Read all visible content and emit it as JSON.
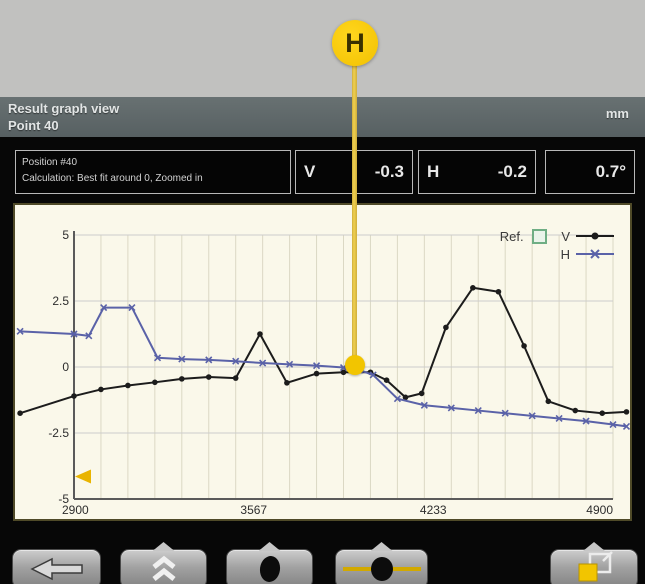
{
  "header": {
    "title_line1": "Result graph view",
    "title_line2": "Point 40",
    "unit": "mm"
  },
  "info_panel": {
    "position_line": "Position #40",
    "calculation_line": "Calculation: Best fit around 0, Zoomed in",
    "readouts": [
      {
        "label": "V",
        "value": "-0.3"
      },
      {
        "label": "H",
        "value": "-0.2"
      },
      {
        "label": "",
        "value": "0.7°"
      }
    ]
  },
  "chart_data": {
    "type": "line",
    "title": "",
    "xlabel": "",
    "ylabel": "",
    "xlim": [
      2700,
      4960
    ],
    "ylim": [
      -5,
      5
    ],
    "x_ticks": [
      "2900",
      "3567",
      "4233",
      "4900"
    ],
    "x_tick_values": [
      2900,
      3567,
      4233,
      4900
    ],
    "y_ticks": [
      "5",
      "2.5",
      "0",
      "-2.5",
      "-5"
    ],
    "y_tick_values": [
      5,
      2.5,
      0,
      -2.5,
      -5
    ],
    "grid": true,
    "grid_step_x": 100,
    "legend": {
      "ref_label": "Ref.",
      "position": "top-right"
    },
    "cursor": {
      "label": "H",
      "position": 3950,
      "value": 0
    },
    "annotations": [
      {
        "type": "left-triangle-marker",
        "x": 2900,
        "y": -4.15,
        "color": "#e9b400"
      }
    ],
    "series": [
      {
        "name": "V",
        "color": "#1c1c1c",
        "marker": "dot",
        "points": [
          [
            2700,
            -1.75
          ],
          [
            2900,
            -1.1
          ],
          [
            3000,
            -0.85
          ],
          [
            3100,
            -0.7
          ],
          [
            3200,
            -0.58
          ],
          [
            3300,
            -0.45
          ],
          [
            3400,
            -0.38
          ],
          [
            3500,
            -0.42
          ],
          [
            3590,
            1.25
          ],
          [
            3690,
            -0.6
          ],
          [
            3800,
            -0.25
          ],
          [
            3900,
            -0.2
          ],
          [
            4000,
            -0.2
          ],
          [
            4060,
            -0.5
          ],
          [
            4130,
            -1.15
          ],
          [
            4190,
            -1.0
          ],
          [
            4280,
            1.5
          ],
          [
            4380,
            3.0
          ],
          [
            4475,
            2.85
          ],
          [
            4570,
            0.8
          ],
          [
            4660,
            -1.3
          ],
          [
            4760,
            -1.65
          ],
          [
            4860,
            -1.75
          ],
          [
            4950,
            -1.7
          ]
        ]
      },
      {
        "name": "H",
        "color": "#5a62a8",
        "marker": "x",
        "points": [
          [
            2700,
            1.35
          ],
          [
            2900,
            1.25
          ],
          [
            2955,
            1.18
          ],
          [
            3010,
            2.25
          ],
          [
            3115,
            2.25
          ],
          [
            3210,
            0.35
          ],
          [
            3300,
            0.3
          ],
          [
            3400,
            0.27
          ],
          [
            3500,
            0.22
          ],
          [
            3600,
            0.15
          ],
          [
            3700,
            0.1
          ],
          [
            3800,
            0.05
          ],
          [
            3900,
            -0.02
          ],
          [
            3960,
            -0.12
          ],
          [
            4010,
            -0.3
          ],
          [
            4100,
            -1.2
          ],
          [
            4200,
            -1.45
          ],
          [
            4300,
            -1.55
          ],
          [
            4400,
            -1.65
          ],
          [
            4500,
            -1.75
          ],
          [
            4600,
            -1.85
          ],
          [
            4700,
            -1.95
          ],
          [
            4800,
            -2.05
          ],
          [
            4900,
            -2.18
          ],
          [
            4950,
            -2.25
          ]
        ]
      }
    ]
  },
  "toolbar": {
    "buttons": [
      {
        "id": "back",
        "icon": "arrow-left-icon"
      },
      {
        "id": "collapse",
        "icon": "double-chevron-up-icon"
      },
      {
        "id": "measure",
        "icon": "black-dot-icon"
      },
      {
        "id": "laser-level",
        "icon": "laser-dot-on-line-icon"
      },
      {
        "id": "reports",
        "icon": "layered-pages-icon"
      }
    ]
  },
  "colors": {
    "background": "#c1c1bf",
    "header_bg": "#5c6567",
    "panel_bg": "#faf8ea",
    "cursor_yellow": "#f2c500",
    "series_v": "#1c1c1c",
    "series_h": "#5a62a8",
    "ref_green": "#6fae84"
  }
}
